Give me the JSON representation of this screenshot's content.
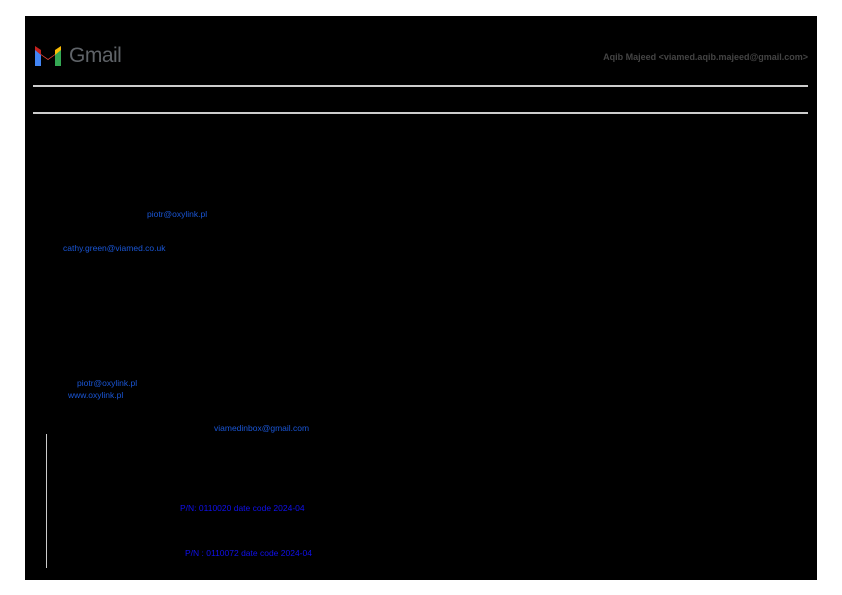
{
  "header": {
    "logo_text": "Gmail",
    "account": "Aqib Majeed <viamed.aqib.majeed@gmail.com>"
  },
  "body": {
    "links": [
      "piotr@oxylink.pl",
      "cathy.green@viamed.co.uk",
      "piotr@oxylink.pl",
      "www.oxylink.pl",
      "viamedinbox@gmail.com"
    ],
    "part_numbers": [
      "P/N: 0110020  date code 2024-04",
      "P/N : 0110072  date code 2024-04"
    ]
  },
  "colors": {
    "link": "#1a56d6",
    "part_number": "#1010ee",
    "page_bg": "#000000"
  }
}
